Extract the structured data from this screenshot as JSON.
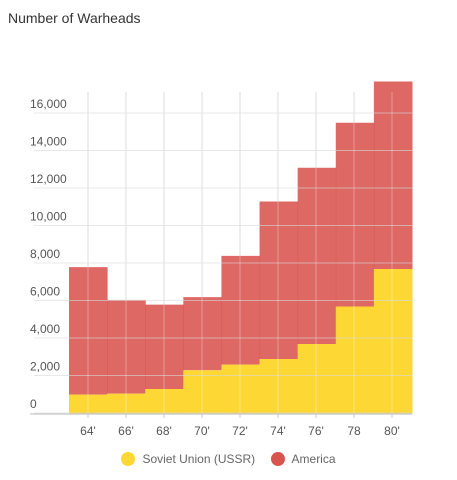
{
  "chart_data": {
    "type": "area",
    "title": "Number of Warheads",
    "x_tick_labels": [
      "64'",
      "66'",
      "68'",
      "70'",
      "72'",
      "74'",
      "76'",
      "78",
      "80'"
    ],
    "y_tick_labels": [
      "0",
      "2,000",
      "4,000",
      "6,000",
      "8,000",
      "10,000",
      "12,000",
      "14,000",
      "16,000"
    ],
    "ylim": [
      0,
      17200
    ],
    "x": [
      "63",
      "65",
      "67",
      "69",
      "71",
      "73",
      "75",
      "77",
      "79"
    ],
    "series": [
      {
        "name": "Soviet Union (USSR)",
        "color": "#fdd835",
        "values": [
          500,
          550,
          800,
          1800,
          2100,
          2400,
          3200,
          5200,
          7200
        ]
      },
      {
        "name": "America",
        "color": "#d9534f",
        "values": [
          6800,
          5000,
          4500,
          3900,
          5800,
          8400,
          9400,
          9800,
          10000
        ]
      }
    ],
    "stacked": true,
    "grid": true,
    "legend_position": "bottom"
  }
}
